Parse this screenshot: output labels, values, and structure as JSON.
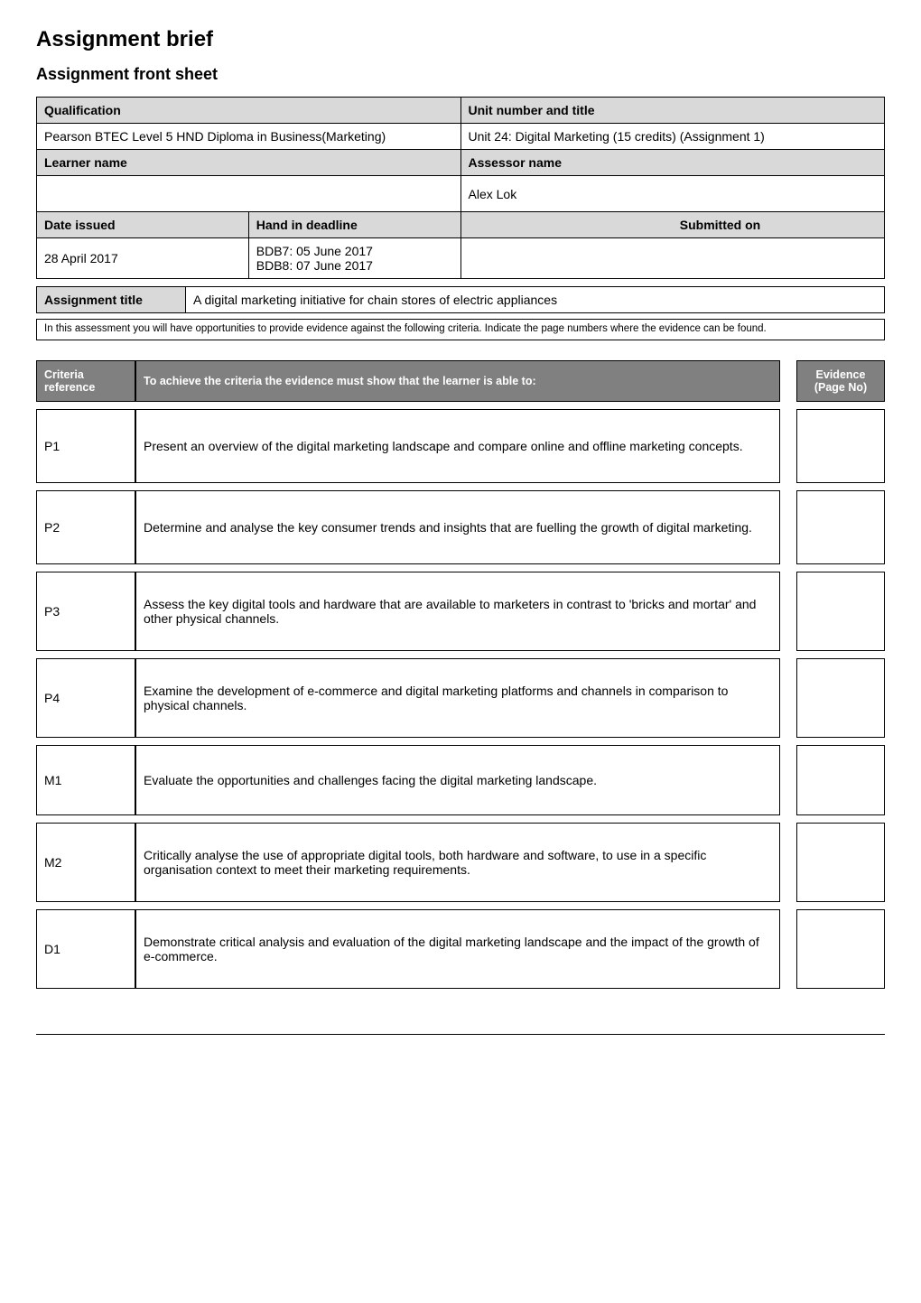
{
  "page": {
    "title": "Assignment brief",
    "subtitle": "Assignment front sheet"
  },
  "front": {
    "qualification_label": "Qualification",
    "qualification_value": "Pearson BTEC Level 5 HND Diploma in Business(Marketing)",
    "unit_label": "Unit number and title",
    "unit_value": "Unit 24: Digital Marketing (15 credits) (Assignment 1)",
    "learner_label": "Learner name",
    "learner_value": "",
    "assessor_label": "Assessor name",
    "assessor_value": "Alex Lok",
    "date_issued_label": "Date issued",
    "date_issued_value": "28 April 2017",
    "hand_in_label": "Hand in deadline",
    "hand_in_value": "BDB7: 05 June 2017\nBDB8: 07 June 2017",
    "submitted_label": "Submitted on",
    "submitted_value": ""
  },
  "assignment_title": {
    "label": "Assignment title",
    "value": "A digital marketing initiative for chain stores of electric appliances"
  },
  "note": "In this assessment you will have opportunities to provide evidence against the following criteria. Indicate the page numbers where the evidence can be found.",
  "criteria": {
    "ref_header": "Criteria reference",
    "desc_header": "To achieve the criteria the evidence must show that the learner is able to:",
    "evidence_header": "Evidence (Page No)",
    "rows": [
      {
        "ref": "P1",
        "desc": "Present an overview of the digital marketing landscape and compare online and offline marketing concepts.",
        "hclass": "h-p"
      },
      {
        "ref": "P2",
        "desc": "Determine and analyse the key consumer trends and insights that are fuelling the growth of digital marketing.",
        "hclass": "h-p"
      },
      {
        "ref": "P3",
        "desc": "Assess the key digital tools and hardware that are available to marketers in contrast to 'bricks and mortar' and other physical channels.",
        "hclass": "h-p3"
      },
      {
        "ref": "P4",
        "desc": "Examine the development of e-commerce and digital marketing platforms and channels in comparison to physical channels.",
        "hclass": "h-p4"
      },
      {
        "ref": "M1",
        "desc": "Evaluate the opportunities and challenges facing the digital marketing landscape.",
        "hclass": "h-m1"
      },
      {
        "ref": "M2",
        "desc": "Critically analyse the use of appropriate digital tools, both hardware and software, to use in a specific organisation context to meet their marketing requirements.",
        "hclass": "h-m2"
      },
      {
        "ref": "D1",
        "desc": "Demonstrate critical analysis and evaluation of the digital marketing landscape and the impact of the growth of e-commerce.",
        "hclass": "h-d1"
      }
    ]
  }
}
